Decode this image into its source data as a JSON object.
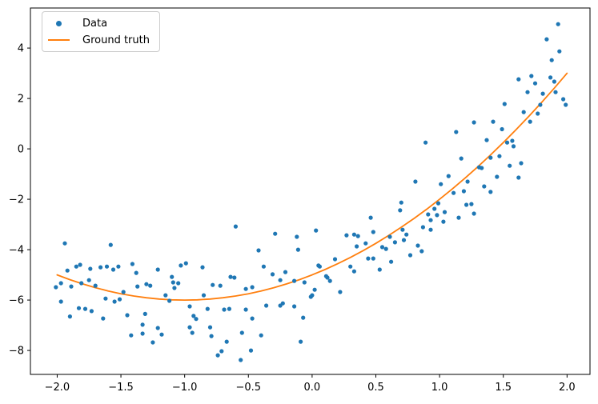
{
  "chart_data": {
    "type": "scatter",
    "title": "",
    "xlabel": "",
    "ylabel": "",
    "xlim": [
      -2.21,
      2.18
    ],
    "ylim": [
      -8.95,
      5.59
    ],
    "grid": false,
    "x_ticks": [
      -2.0,
      -1.5,
      -1.0,
      -0.5,
      0.0,
      0.5,
      1.0,
      1.5,
      2.0
    ],
    "x_tick_labels": [
      "−2.0",
      "−1.5",
      "−1.0",
      "−0.5",
      "0.0",
      "0.5",
      "1.0",
      "1.5",
      "2.0"
    ],
    "y_ticks": [
      -8,
      -6,
      -4,
      -2,
      0,
      2,
      4
    ],
    "y_tick_labels": [
      "−8",
      "−6",
      "−4",
      "−2",
      "0",
      "2",
      "4"
    ],
    "legend": {
      "position": "upper left"
    },
    "series": [
      {
        "name": "Data",
        "kind": "scatter",
        "color": "#1f77b4",
        "marker": "circle",
        "marker_radius": 2.6,
        "points": [
          [
            -1.94,
            -3.75
          ],
          [
            -1.58,
            -3.81
          ],
          [
            -1.92,
            -4.83
          ],
          [
            -1.85,
            -4.67
          ],
          [
            -1.82,
            -4.6
          ],
          [
            -1.74,
            -4.76
          ],
          [
            -1.66,
            -4.7
          ],
          [
            -1.61,
            -4.67
          ],
          [
            -1.56,
            -4.79
          ],
          [
            -1.52,
            -4.67
          ],
          [
            -1.41,
            -4.57
          ],
          [
            -1.38,
            -4.92
          ],
          [
            -1.21,
            -4.79
          ],
          [
            -1.1,
            -5.08
          ],
          [
            -1.09,
            -5.3
          ],
          [
            -1.03,
            -4.63
          ],
          [
            -0.99,
            -4.54
          ],
          [
            -0.86,
            -4.7
          ],
          [
            -0.78,
            -5.4
          ],
          [
            -2.01,
            -5.49
          ],
          [
            -1.97,
            -5.33
          ],
          [
            -1.89,
            -5.46
          ],
          [
            -1.81,
            -5.33
          ],
          [
            -1.75,
            -5.21
          ],
          [
            -1.7,
            -5.43
          ],
          [
            -1.62,
            -5.94
          ],
          [
            -1.55,
            -6.06
          ],
          [
            -1.51,
            -5.97
          ],
          [
            -1.48,
            -5.68
          ],
          [
            -1.37,
            -5.46
          ],
          [
            -1.3,
            -5.37
          ],
          [
            -1.27,
            -5.43
          ],
          [
            -1.15,
            -5.81
          ],
          [
            -1.12,
            -6.03
          ],
          [
            -1.08,
            -5.52
          ],
          [
            -1.05,
            -5.33
          ],
          [
            -0.96,
            -6.25
          ],
          [
            -0.85,
            -5.81
          ],
          [
            -0.82,
            -6.35
          ],
          [
            -1.97,
            -6.06
          ],
          [
            -1.9,
            -6.65
          ],
          [
            -1.83,
            -6.32
          ],
          [
            -1.78,
            -6.35
          ],
          [
            -1.73,
            -6.44
          ],
          [
            -1.45,
            -6.6
          ],
          [
            -1.31,
            -6.55
          ],
          [
            -0.93,
            -6.63
          ],
          [
            -1.64,
            -6.73
          ],
          [
            -1.33,
            -6.98
          ],
          [
            -1.21,
            -7.11
          ],
          [
            -1.42,
            -7.4
          ],
          [
            -1.33,
            -7.33
          ],
          [
            -1.18,
            -7.37
          ],
          [
            -1.25,
            -7.68
          ],
          [
            -0.91,
            -6.75
          ],
          [
            -0.96,
            -7.08
          ],
          [
            -0.94,
            -7.3
          ],
          [
            -0.8,
            -7.08
          ],
          [
            -0.79,
            -7.43
          ],
          [
            -0.6,
            -3.08
          ],
          [
            -0.29,
            -3.37
          ],
          [
            -0.12,
            -3.49
          ],
          [
            -0.42,
            -4.03
          ],
          [
            -0.11,
            -4.0
          ],
          [
            0.03,
            -3.24
          ],
          [
            0.27,
            -3.43
          ],
          [
            0.33,
            -3.4
          ],
          [
            0.36,
            -3.46
          ],
          [
            0.42,
            -3.75
          ],
          [
            0.35,
            -3.87
          ],
          [
            0.48,
            -3.3
          ],
          [
            0.61,
            -3.49
          ],
          [
            0.65,
            -3.71
          ],
          [
            0.55,
            -3.9
          ],
          [
            0.58,
            -3.97
          ],
          [
            0.48,
            -4.35
          ],
          [
            0.44,
            -4.35
          ],
          [
            0.53,
            -4.79
          ],
          [
            0.62,
            -4.48
          ],
          [
            0.71,
            -3.21
          ],
          [
            0.72,
            -3.62
          ],
          [
            -0.38,
            -4.67
          ],
          [
            -0.31,
            -4.98
          ],
          [
            -0.25,
            -5.21
          ],
          [
            -0.21,
            -4.89
          ],
          [
            -0.14,
            -5.24
          ],
          [
            -0.06,
            -5.3
          ],
          [
            0.05,
            -4.63
          ],
          [
            0.06,
            -4.67
          ],
          [
            0.11,
            -5.05
          ],
          [
            0.12,
            -5.11
          ],
          [
            0.14,
            -5.24
          ],
          [
            0.18,
            -4.38
          ],
          [
            0.3,
            -4.67
          ],
          [
            0.33,
            -4.86
          ],
          [
            0.22,
            -5.68
          ],
          [
            0.02,
            -5.59
          ],
          [
            -0.01,
            -5.87
          ],
          [
            -0.52,
            -5.56
          ],
          [
            -0.47,
            -5.49
          ],
          [
            -0.64,
            -5.08
          ],
          [
            -0.61,
            -5.11
          ],
          [
            -0.72,
            -5.43
          ],
          [
            -0.65,
            -6.35
          ],
          [
            -0.69,
            -6.38
          ],
          [
            -0.52,
            -6.38
          ],
          [
            -0.36,
            -6.22
          ],
          [
            -0.23,
            -6.13
          ],
          [
            -0.25,
            -6.22
          ],
          [
            -0.14,
            -6.25
          ],
          [
            0.0,
            -5.81
          ],
          [
            -0.07,
            -6.7
          ],
          [
            -0.47,
            -6.73
          ],
          [
            -0.55,
            -7.3
          ],
          [
            -0.4,
            -7.4
          ],
          [
            -0.67,
            -7.65
          ],
          [
            -0.09,
            -7.65
          ],
          [
            -0.48,
            -8.0
          ],
          [
            -0.71,
            -8.03
          ],
          [
            -0.74,
            -8.19
          ],
          [
            -0.56,
            -8.38
          ],
          [
            0.87,
            -3.11
          ],
          [
            0.93,
            -3.21
          ],
          [
            0.74,
            -3.4
          ],
          [
            0.83,
            -3.84
          ],
          [
            0.86,
            -4.06
          ],
          [
            0.77,
            -4.22
          ],
          [
            1.13,
            0.67
          ],
          [
            1.49,
            0.78
          ],
          [
            0.89,
            0.25
          ],
          [
            1.37,
            0.35
          ],
          [
            1.53,
            0.25
          ],
          [
            1.57,
            0.32
          ],
          [
            1.58,
            0.1
          ],
          [
            1.4,
            -0.35
          ],
          [
            1.47,
            -0.29
          ],
          [
            1.31,
            -0.73
          ],
          [
            1.33,
            -0.76
          ],
          [
            1.17,
            -0.38
          ],
          [
            1.55,
            -0.67
          ],
          [
            1.64,
            -0.57
          ],
          [
            1.07,
            -1.08
          ],
          [
            1.45,
            -1.11
          ],
          [
            1.62,
            -1.14
          ],
          [
            1.01,
            -1.4
          ],
          [
            0.81,
            -1.3
          ],
          [
            1.22,
            -1.3
          ],
          [
            1.35,
            -1.49
          ],
          [
            1.11,
            -1.75
          ],
          [
            1.19,
            -1.68
          ],
          [
            1.4,
            -1.71
          ],
          [
            0.99,
            -2.16
          ],
          [
            1.21,
            -2.22
          ],
          [
            1.25,
            -2.19
          ],
          [
            1.27,
            -2.57
          ],
          [
            1.04,
            -2.51
          ],
          [
            0.96,
            -2.38
          ],
          [
            0.98,
            -2.63
          ],
          [
            0.91,
            -2.6
          ],
          [
            0.93,
            -2.83
          ],
          [
            1.03,
            -2.89
          ],
          [
            1.15,
            -2.73
          ],
          [
            0.46,
            -2.73
          ],
          [
            0.7,
            -2.13
          ],
          [
            0.69,
            -2.44
          ],
          [
            1.93,
            4.95
          ],
          [
            1.84,
            4.35
          ],
          [
            1.94,
            3.87
          ],
          [
            1.88,
            3.52
          ],
          [
            1.62,
            2.76
          ],
          [
            1.72,
            2.89
          ],
          [
            1.75,
            2.6
          ],
          [
            1.87,
            2.83
          ],
          [
            1.9,
            2.67
          ],
          [
            1.69,
            2.25
          ],
          [
            1.81,
            2.19
          ],
          [
            1.91,
            2.25
          ],
          [
            1.97,
            1.97
          ],
          [
            1.99,
            1.75
          ],
          [
            1.79,
            1.75
          ],
          [
            1.66,
            1.46
          ],
          [
            1.51,
            1.78
          ],
          [
            1.77,
            1.4
          ],
          [
            1.71,
            1.08
          ],
          [
            1.27,
            1.05
          ],
          [
            1.42,
            1.08
          ]
        ]
      },
      {
        "name": "Ground truth",
        "kind": "line",
        "color": "#ff7f0e",
        "line_width": 1.8,
        "x": [
          -2.0,
          -1.9,
          -1.8,
          -1.7,
          -1.6,
          -1.5,
          -1.4,
          -1.3,
          -1.2,
          -1.1,
          -1.0,
          -0.9,
          -0.8,
          -0.7,
          -0.6,
          -0.5,
          -0.4,
          -0.3,
          -0.2,
          -0.1,
          0.0,
          0.1,
          0.2,
          0.3,
          0.4,
          0.5,
          0.6,
          0.7,
          0.8,
          0.9,
          1.0,
          1.1,
          1.2,
          1.3,
          1.4,
          1.5,
          1.6,
          1.7,
          1.8,
          1.9,
          2.0
        ],
        "y": [
          -5.0,
          -5.19,
          -5.36,
          -5.51,
          -5.64,
          -5.75,
          -5.84,
          -5.91,
          -5.96,
          -5.99,
          -6.0,
          -5.99,
          -5.96,
          -5.91,
          -5.84,
          -5.75,
          -5.64,
          -5.51,
          -5.36,
          -5.19,
          -5.0,
          -4.79,
          -4.56,
          -4.31,
          -4.04,
          -3.75,
          -3.44,
          -3.11,
          -2.76,
          -2.39,
          -2.0,
          -1.59,
          -1.16,
          -0.71,
          -0.24,
          0.25,
          0.76,
          1.29,
          1.84,
          2.41,
          3.0
        ]
      }
    ],
    "axis_color": "#000000",
    "tick_label_color": "#000000"
  }
}
